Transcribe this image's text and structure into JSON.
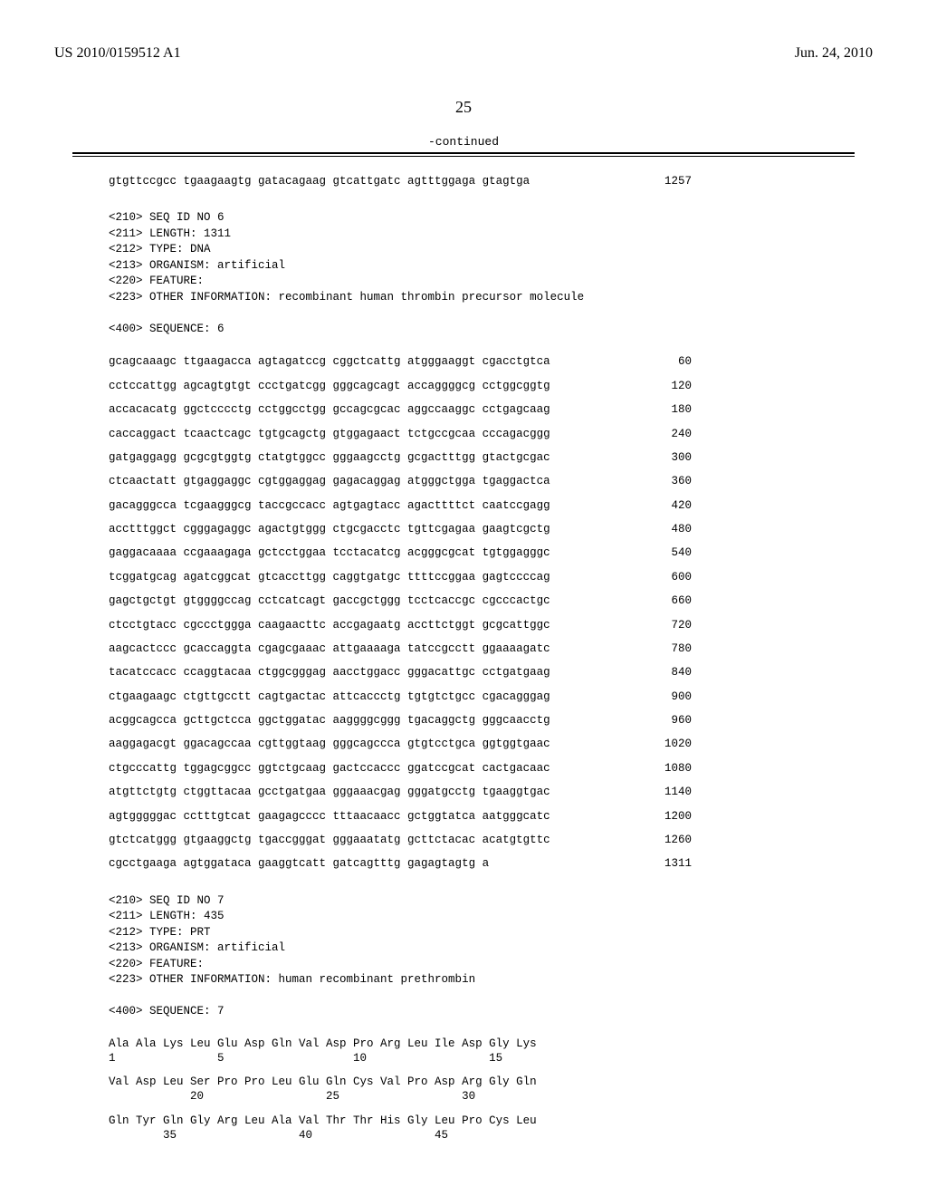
{
  "header": {
    "pubnum": "US 2010/0159512 A1",
    "date": "Jun. 24, 2010"
  },
  "pagenum": "25",
  "continued": "-continued",
  "seq5_tail": {
    "text": "gtgttccgcc tgaagaagtg gatacagaag gtcattgatc agtttggaga gtagtga",
    "num": "1257"
  },
  "seq6_header": "<210> SEQ ID NO 6\n<211> LENGTH: 1311\n<212> TYPE: DNA\n<213> ORGANISM: artificial\n<220> FEATURE:\n<223> OTHER INFORMATION: recombinant human thrombin precursor molecule\n\n<400> SEQUENCE: 6",
  "seq6_lines": [
    {
      "t": "gcagcaaagc ttgaagacca agtagatccg cggctcattg atgggaaggt cgacctgtca",
      "n": "60"
    },
    {
      "t": "cctccattgg agcagtgtgt ccctgatcgg gggcagcagt accaggggcg cctggcggtg",
      "n": "120"
    },
    {
      "t": "accacacatg ggctcccctg cctggcctgg gccagcgcac aggccaaggc cctgagcaag",
      "n": "180"
    },
    {
      "t": "caccaggact tcaactcagc tgtgcagctg gtggagaact tctgccgcaa cccagacggg",
      "n": "240"
    },
    {
      "t": "gatgaggagg gcgcgtggtg ctatgtggcc gggaagcctg gcgactttgg gtactgcgac",
      "n": "300"
    },
    {
      "t": "ctcaactatt gtgaggaggc cgtggaggag gagacaggag atgggctgga tgaggactca",
      "n": "360"
    },
    {
      "t": "gacagggcca tcgaagggcg taccgccacc agtgagtacc agacttttct caatccgagg",
      "n": "420"
    },
    {
      "t": "acctttggct cgggagaggc agactgtggg ctgcgacctc tgttcgagaa gaagtcgctg",
      "n": "480"
    },
    {
      "t": "gaggacaaaa ccgaaagaga gctcctggaa tcctacatcg acgggcgcat tgtggagggc",
      "n": "540"
    },
    {
      "t": "tcggatgcag agatcggcat gtcaccttgg caggtgatgc ttttccggaa gagtccccag",
      "n": "600"
    },
    {
      "t": "gagctgctgt gtggggccag cctcatcagt gaccgctggg tcctcaccgc cgcccactgc",
      "n": "660"
    },
    {
      "t": "ctcctgtacc cgccctggga caagaacttc accgagaatg accttctggt gcgcattggc",
      "n": "720"
    },
    {
      "t": "aagcactccc gcaccaggta cgagcgaaac attgaaaaga tatccgcctt ggaaaagatc",
      "n": "780"
    },
    {
      "t": "tacatccacc ccaggtacaa ctggcgggag aacctggacc gggacattgc cctgatgaag",
      "n": "840"
    },
    {
      "t": "ctgaagaagc ctgttgcctt cagtgactac attcaccctg tgtgtctgcc cgacagggag",
      "n": "900"
    },
    {
      "t": "acggcagcca gcttgctcca ggctggatac aaggggcggg tgacaggctg gggcaacctg",
      "n": "960"
    },
    {
      "t": "aaggagacgt ggacagccaa cgttggtaag gggcagccca gtgtcctgca ggtggtgaac",
      "n": "1020"
    },
    {
      "t": "ctgcccattg tggagcggcc ggtctgcaag gactccaccc ggatccgcat cactgacaac",
      "n": "1080"
    },
    {
      "t": "atgttctgtg ctggttacaa gcctgatgaa gggaaacgag gggatgcctg tgaaggtgac",
      "n": "1140"
    },
    {
      "t": "agtgggggac cctttgtcat gaagagcccc tttaacaacc gctggtatca aatgggcatc",
      "n": "1200"
    },
    {
      "t": "gtctcatggg gtgaaggctg tgaccgggat gggaaatatg gcttctacac acatgtgttc",
      "n": "1260"
    },
    {
      "t": "cgcctgaaga agtggataca gaaggtcatt gatcagtttg gagagtagtg a",
      "n": "1311"
    }
  ],
  "seq7_header": "<210> SEQ ID NO 7\n<211> LENGTH: 435\n<212> TYPE: PRT\n<213> ORGANISM: artificial\n<220> FEATURE:\n<223> OTHER INFORMATION: human recombinant prethrombin\n\n<400> SEQUENCE: 7",
  "seq7_lines": [
    "Ala Ala Lys Leu Glu Asp Gln Val Asp Pro Arg Leu Ile Asp Gly Lys\n1               5                   10                  15",
    "Val Asp Leu Ser Pro Pro Leu Glu Gln Cys Val Pro Asp Arg Gly Gln\n            20                  25                  30",
    "Gln Tyr Gln Gly Arg Leu Ala Val Thr Thr His Gly Leu Pro Cys Leu\n        35                  40                  45"
  ]
}
